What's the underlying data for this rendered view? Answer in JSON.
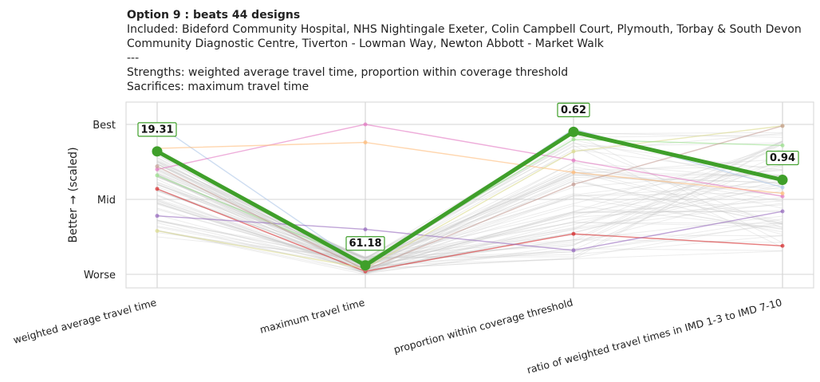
{
  "header": {
    "title": "Option 9 : beats 44 designs",
    "included_line1": "Included: Bideford Community Hospital, NHS Nightingale Exeter, Colin Campbell Court, Plymouth, Torbay & South Devon",
    "included_line2": "Community Diagnostic Centre, Tiverton - Lowman Way, Newton Abbott - Market Walk",
    "separator": "---",
    "strengths": "Strengths: weighted average travel time, proportion within coverage threshold",
    "sacrifices": "Sacrifices: maximum travel time"
  },
  "colors": {
    "highlight": "#3f9f2a",
    "background_lines": "#c8c8c8",
    "grid": "#d5d5d5"
  },
  "chart_data": {
    "type": "parallel-coordinates",
    "ylabel": "Better → (scaled)",
    "y_ticks": [
      "Worse",
      "Mid",
      "Best"
    ],
    "ylim": [
      0,
      1
    ],
    "axes": [
      "weighted average travel time",
      "maximum travel time",
      "proportion within coverage threshold",
      "ratio of weighted travel times in IMD 1-3 to IMD 7-10"
    ],
    "highlight": {
      "name": "Option 9",
      "scaled": [
        0.82,
        0.06,
        0.95,
        0.63
      ],
      "labels": [
        "19.31",
        "61.18",
        "0.62",
        "0.94"
      ]
    },
    "colored_series": [
      {
        "color": "#aec7e8",
        "scaled": [
          1.0,
          0.05,
          0.97,
          0.58
        ]
      },
      {
        "color": "#e377c2",
        "scaled": [
          0.7,
          1.0,
          0.76,
          0.52
        ]
      },
      {
        "color": "#ffbb78",
        "scaled": [
          0.84,
          0.88,
          0.68,
          0.54
        ]
      },
      {
        "color": "#d62728",
        "scaled": [
          0.57,
          0.02,
          0.27,
          0.19
        ]
      },
      {
        "color": "#9467bd",
        "scaled": [
          0.39,
          0.3,
          0.16,
          0.42
        ]
      },
      {
        "color": "#dbdb8d",
        "scaled": [
          0.29,
          0.04,
          0.82,
          0.99
        ]
      },
      {
        "color": "#98df8a",
        "scaled": [
          0.66,
          0.08,
          0.9,
          0.86
        ]
      },
      {
        "color": "#c49c94",
        "scaled": [
          0.72,
          0.03,
          0.6,
          0.99
        ]
      }
    ]
  }
}
